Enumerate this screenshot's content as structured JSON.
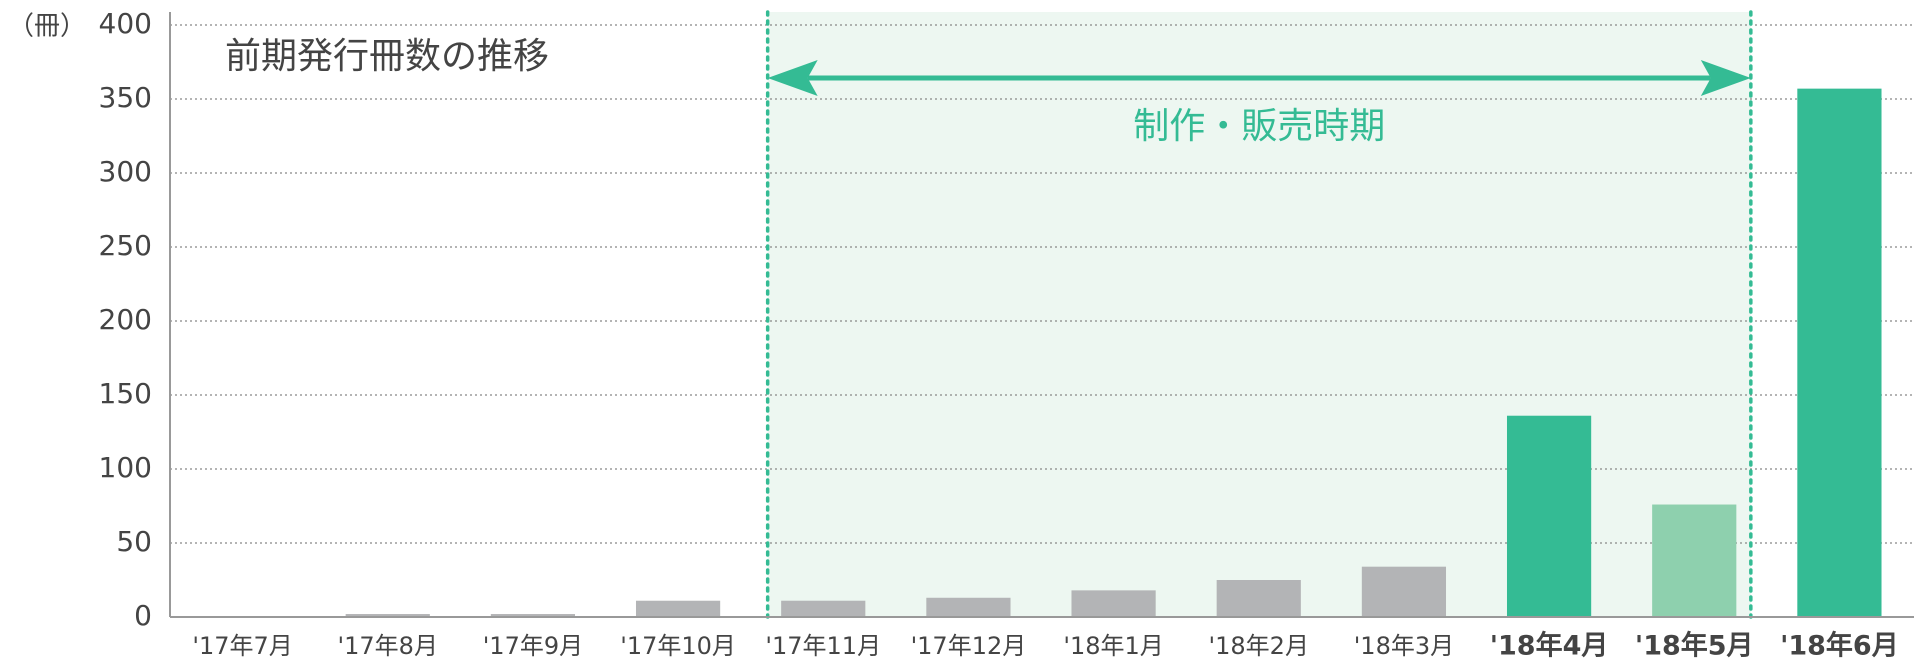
{
  "chart_data": {
    "type": "bar",
    "title": "前期発行冊数の推移",
    "y_label": "（冊）",
    "categories": [
      "'17年7月",
      "'17年8月",
      "'17年9月",
      "'17年10月",
      "'17年11月",
      "'17年12月",
      "'18年1月",
      "'18年2月",
      "'18年3月",
      "'18年4月",
      "'18年5月",
      "'18年6月"
    ],
    "values": [
      0,
      2,
      2,
      11,
      11,
      13,
      18,
      25,
      34,
      136,
      76,
      357
    ],
    "colors": [
      "#b3b4b6",
      "#b3b4b6",
      "#b3b4b6",
      "#b3b4b6",
      "#b3b4b6",
      "#b3b4b6",
      "#b3b4b6",
      "#b3b4b6",
      "#b3b4b6",
      "#34bb94",
      "#8ed0ae",
      "#34bb94"
    ],
    "ylim": [
      0,
      400
    ],
    "yticks": [
      0,
      50,
      100,
      150,
      200,
      250,
      300,
      350,
      400
    ],
    "grid": true,
    "annotation": {
      "text": "制作・販売時期",
      "from": "'17年11月",
      "to": "'18年5月",
      "color": "#34bb94"
    }
  }
}
